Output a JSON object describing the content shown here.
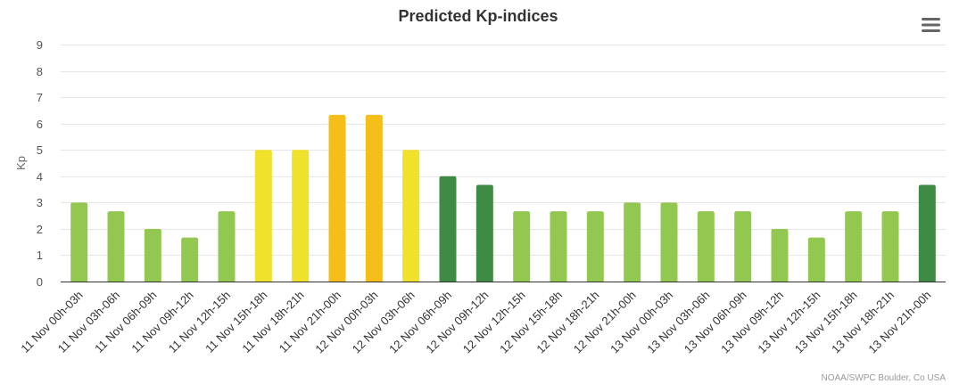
{
  "chart_data": {
    "type": "bar",
    "title": "Predicted Kp-indices",
    "xlabel": "",
    "ylabel": "Kp",
    "ylim": [
      0,
      9
    ],
    "yticks": [
      0,
      1,
      2,
      3,
      4,
      5,
      6,
      7,
      8,
      9
    ],
    "grid": true,
    "legend": "none",
    "categories": [
      "11 Nov 00h-03h",
      "11 Nov 03h-06h",
      "11 Nov 06h-09h",
      "11 Nov 09h-12h",
      "11 Nov 12h-15h",
      "11 Nov 15h-18h",
      "11 Nov 18h-21h",
      "11 Nov 21h-00h",
      "12 Nov 00h-03h",
      "12 Nov 03h-06h",
      "12 Nov 06h-09h",
      "12 Nov 09h-12h",
      "12 Nov 12h-15h",
      "12 Nov 15h-18h",
      "12 Nov 18h-21h",
      "12 Nov 21h-00h",
      "13 Nov 00h-03h",
      "13 Nov 03h-06h",
      "13 Nov 06h-09h",
      "13 Nov 09h-12h",
      "13 Nov 12h-15h",
      "13 Nov 15h-18h",
      "13 Nov 18h-21h",
      "13 Nov 21h-00h"
    ],
    "values": [
      3,
      2.67,
      2,
      1.67,
      2.67,
      5,
      5,
      6.33,
      6.33,
      5,
      4,
      3.67,
      2.67,
      2.67,
      2.67,
      3,
      3,
      2.67,
      2.67,
      2,
      1.67,
      2.67,
      2.67,
      3.67
    ],
    "bar_colors": [
      "#92c850",
      "#92c850",
      "#92c850",
      "#92c850",
      "#92c850",
      "#f0e22a",
      "#f0e22a",
      "#f5be18",
      "#f5be18",
      "#f0e22a",
      "#3f8a44",
      "#3f8a44",
      "#92c850",
      "#92c850",
      "#92c850",
      "#92c850",
      "#92c850",
      "#92c850",
      "#92c850",
      "#92c850",
      "#92c850",
      "#92c850",
      "#92c850",
      "#3f8a44"
    ]
  },
  "credit": "NOAA/SWPC Boulder, Co USA",
  "menu_icon": "hamburger-menu-icon",
  "colors": {
    "grid": "#e6e6e6",
    "axis": "#333333",
    "menu": "#666666"
  }
}
